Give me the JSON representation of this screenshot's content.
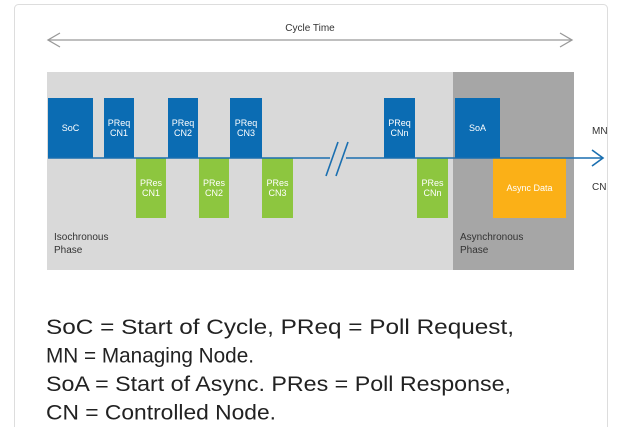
{
  "title": "Cycle Time",
  "side_labels": [
    "MN",
    "CN"
  ],
  "phases": [
    {
      "lines": [
        "Isochronous",
        "Phase"
      ]
    },
    {
      "lines": [
        "Asynchronous",
        "Phase"
      ]
    }
  ],
  "blocks": [
    {
      "kind": "mn",
      "lines": [
        "SoC"
      ]
    },
    {
      "kind": "mn",
      "lines": [
        "PReq",
        "CN1"
      ]
    },
    {
      "kind": "cn",
      "lines": [
        "PRes",
        "CN1"
      ]
    },
    {
      "kind": "mn",
      "lines": [
        "PReq",
        "CN2"
      ]
    },
    {
      "kind": "cn",
      "lines": [
        "PRes",
        "CN2"
      ]
    },
    {
      "kind": "mn",
      "lines": [
        "PReq",
        "CN3"
      ]
    },
    {
      "kind": "cn",
      "lines": [
        "PRes",
        "CN3"
      ]
    },
    {
      "kind": "mn",
      "lines": [
        "PReq",
        "CNn"
      ]
    },
    {
      "kind": "cn",
      "lines": [
        "PRes",
        "CNn"
      ]
    },
    {
      "kind": "mn",
      "lines": [
        "SoA"
      ]
    },
    {
      "kind": "async",
      "lines": [
        "Async Data"
      ]
    }
  ],
  "legend_lines": [
    "SoC = Start of Cycle,   PReq = Poll Request,",
    "MN = Managing Node.",
    "SoA = Start of Async. PRes = Poll Response,",
    "CN = Controlled Node."
  ]
}
